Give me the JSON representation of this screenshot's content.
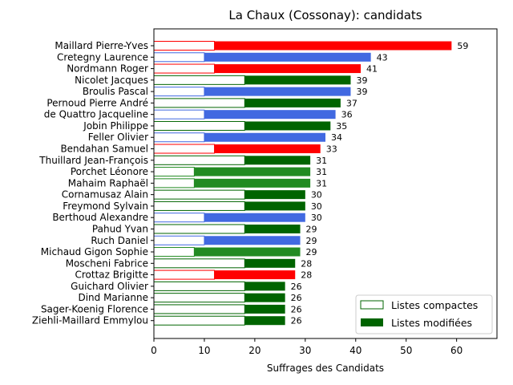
{
  "chart_data": {
    "type": "bar",
    "orientation": "horizontal",
    "stacked": true,
    "title": "La Chaux (Cossonay): candidats",
    "xlabel": "Suffrages des Candidats",
    "ylabel": "",
    "xlim": [
      0,
      68
    ],
    "xticks": [
      "0",
      "10",
      "20",
      "30",
      "40",
      "50",
      "60"
    ],
    "grid": false,
    "legend_position": "bottom-right",
    "series": [
      {
        "name": "Listes compactes",
        "style": "hollow"
      },
      {
        "name": "Listes modifiées",
        "style": "filled"
      }
    ],
    "legend_colors": {
      "compactes_edge": "#006400",
      "modifiees": "#006400"
    },
    "candidates": [
      {
        "name": "Maillard Pierre-Yves",
        "compact": 12,
        "total": 59,
        "color": "#ff0000"
      },
      {
        "name": "Cretegny Laurence",
        "compact": 10,
        "total": 43,
        "color": "#4169e1"
      },
      {
        "name": "Nordmann Roger",
        "compact": 12,
        "total": 41,
        "color": "#ff0000"
      },
      {
        "name": "Nicolet Jacques",
        "compact": 18,
        "total": 39,
        "color": "#006400"
      },
      {
        "name": "Broulis Pascal",
        "compact": 10,
        "total": 39,
        "color": "#4169e1"
      },
      {
        "name": "Pernoud Pierre André",
        "compact": 18,
        "total": 37,
        "color": "#006400"
      },
      {
        "name": "de Quattro Jacqueline",
        "compact": 10,
        "total": 36,
        "color": "#4169e1"
      },
      {
        "name": "Jobin Philippe",
        "compact": 18,
        "total": 35,
        "color": "#006400"
      },
      {
        "name": "Feller Olivier",
        "compact": 10,
        "total": 34,
        "color": "#4169e1"
      },
      {
        "name": "Bendahan Samuel",
        "compact": 12,
        "total": 33,
        "color": "#ff0000"
      },
      {
        "name": "Thuillard Jean-François",
        "compact": 18,
        "total": 31,
        "color": "#006400"
      },
      {
        "name": "Porchet Léonore",
        "compact": 8,
        "total": 31,
        "color": "#228b22"
      },
      {
        "name": "Mahaim Raphaël",
        "compact": 8,
        "total": 31,
        "color": "#228b22"
      },
      {
        "name": "Cornamusaz Alain",
        "compact": 18,
        "total": 30,
        "color": "#006400"
      },
      {
        "name": "Freymond Sylvain",
        "compact": 18,
        "total": 30,
        "color": "#006400"
      },
      {
        "name": "Berthoud Alexandre",
        "compact": 10,
        "total": 30,
        "color": "#4169e1"
      },
      {
        "name": "Pahud Yvan",
        "compact": 18,
        "total": 29,
        "color": "#006400"
      },
      {
        "name": "Ruch Daniel",
        "compact": 10,
        "total": 29,
        "color": "#4169e1"
      },
      {
        "name": "Michaud Gigon Sophie",
        "compact": 8,
        "total": 29,
        "color": "#228b22"
      },
      {
        "name": "Moscheni Fabrice",
        "compact": 18,
        "total": 28,
        "color": "#006400"
      },
      {
        "name": "Crottaz Brigitte",
        "compact": 12,
        "total": 28,
        "color": "#ff0000"
      },
      {
        "name": "Guichard Olivier",
        "compact": 18,
        "total": 26,
        "color": "#006400"
      },
      {
        "name": "Dind Marianne",
        "compact": 18,
        "total": 26,
        "color": "#006400"
      },
      {
        "name": "Sager-Koenig Florence",
        "compact": 18,
        "total": 26,
        "color": "#006400"
      },
      {
        "name": "Ziehli-Maillard Emmylou",
        "compact": 18,
        "total": 26,
        "color": "#006400"
      }
    ]
  }
}
